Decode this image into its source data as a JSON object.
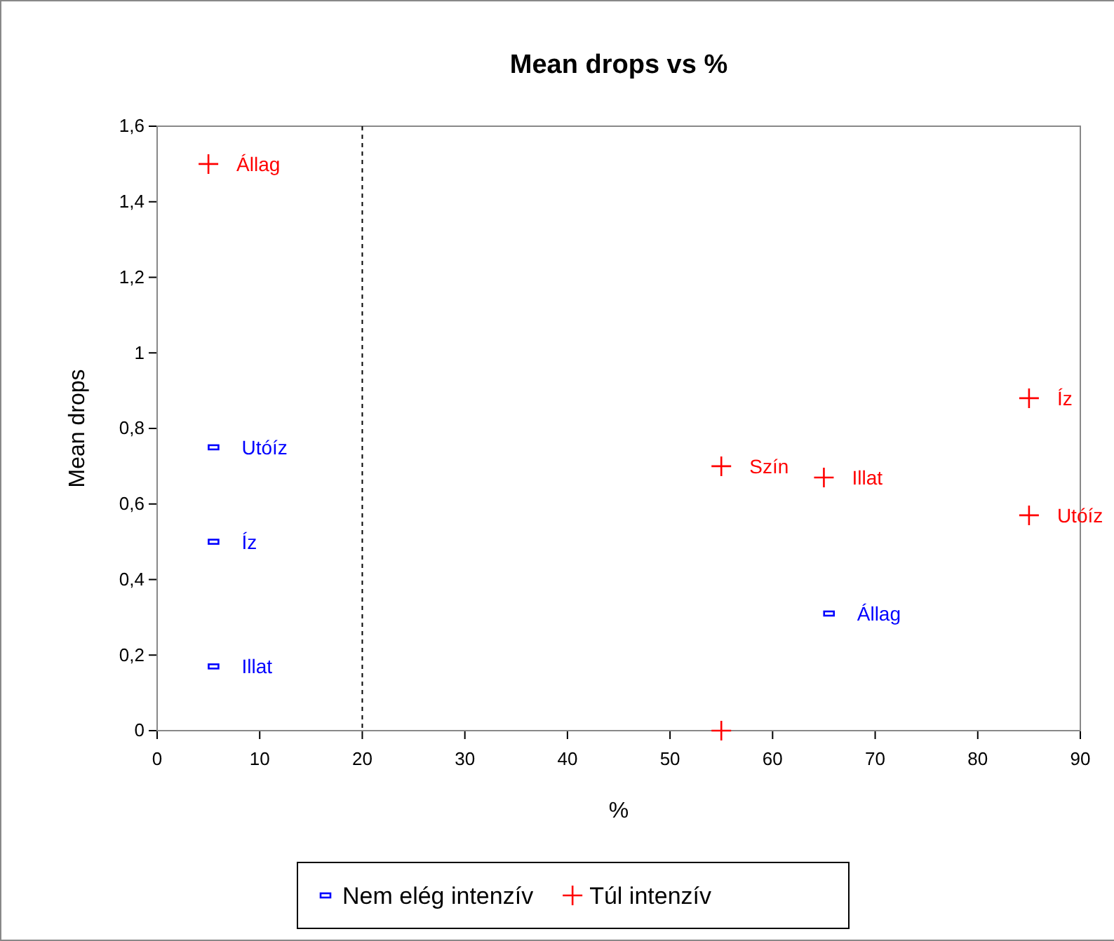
{
  "chart_data": {
    "type": "scatter",
    "title": "Mean drops vs %",
    "xlabel": "%",
    "ylabel": "Mean drops",
    "xlim": [
      0,
      90
    ],
    "xticks": [
      0,
      10,
      20,
      30,
      40,
      50,
      60,
      70,
      80,
      90
    ],
    "ylim": [
      0,
      1.6
    ],
    "yticks": [
      0,
      {
        "value": 0.2,
        "label": "0,2"
      },
      {
        "value": 0.4,
        "label": "0,4"
      },
      {
        "value": 0.6,
        "label": "0,6"
      },
      {
        "value": 0.8,
        "label": "0,8"
      },
      1,
      {
        "value": 1.2,
        "label": "1,2"
      },
      {
        "value": 1.4,
        "label": "1,4"
      },
      {
        "value": 1.6,
        "label": "1,6"
      }
    ],
    "grid": false,
    "legend": "bottom",
    "series": [
      {
        "name": "Nem elég intenzív",
        "color": "#0000ff",
        "marker": "square",
        "x": [
          5.5,
          5.5,
          5.5,
          65.5
        ],
        "values": [
          0.75,
          0.5,
          0.17,
          0.31
        ]
      },
      {
        "name": "Túl intenzív",
        "color": "#ff0000",
        "marker": "cross",
        "x": [
          5,
          55,
          65,
          85,
          85,
          55
        ],
        "values": [
          1.5,
          0.7,
          0.67,
          0.88,
          0.57,
          0
        ]
      }
    ],
    "ref_lines": [
      {
        "axis": "x",
        "value": 20,
        "color": "#000000",
        "line_style": "dashed"
      }
    ],
    "annotations": [
      {
        "text": "Utóíz",
        "x": 5.5,
        "y": 0.75
      },
      {
        "text": "Íz",
        "x": 5.5,
        "y": 0.5
      },
      {
        "text": "Illat",
        "x": 5.5,
        "y": 0.17
      },
      {
        "text": "Állag",
        "x": 65.5,
        "y": 0.31
      },
      {
        "text": "Állag",
        "x": 5,
        "y": 1.5
      },
      {
        "text": "Szín",
        "x": 55,
        "y": 0.7
      },
      {
        "text": "Illat",
        "x": 65,
        "y": 0.67
      },
      {
        "text": "Íz",
        "x": 85,
        "y": 0.88
      },
      {
        "text": "Utóíz",
        "x": 85,
        "y": 0.57
      }
    ]
  }
}
